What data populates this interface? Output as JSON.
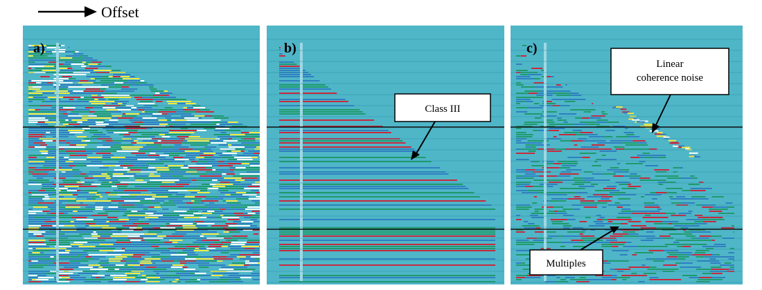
{
  "header": {
    "arrow_label": "Offset"
  },
  "colors": {
    "background": "#4fb6c8",
    "gather_blue": "#2f7fc0",
    "gather_green": "#1f9a6a",
    "gather_red": "#c8283c",
    "gather_yellow": "#f4ea44",
    "gather_white": "#ffffff",
    "line_black": "#101010"
  },
  "panels": [
    {
      "id": "a",
      "label": "a)",
      "annotations": []
    },
    {
      "id": "b",
      "label": "b)",
      "annotations": [
        {
          "id": "class-iii",
          "text_lines": [
            "Class III"
          ]
        }
      ]
    },
    {
      "id": "c",
      "label": "c)",
      "annotations": [
        {
          "id": "linear-noise",
          "text_lines": [
            "Linear",
            "coherence noise"
          ]
        },
        {
          "id": "multiples",
          "text_lines": [
            "Multiples"
          ]
        }
      ]
    }
  ]
}
